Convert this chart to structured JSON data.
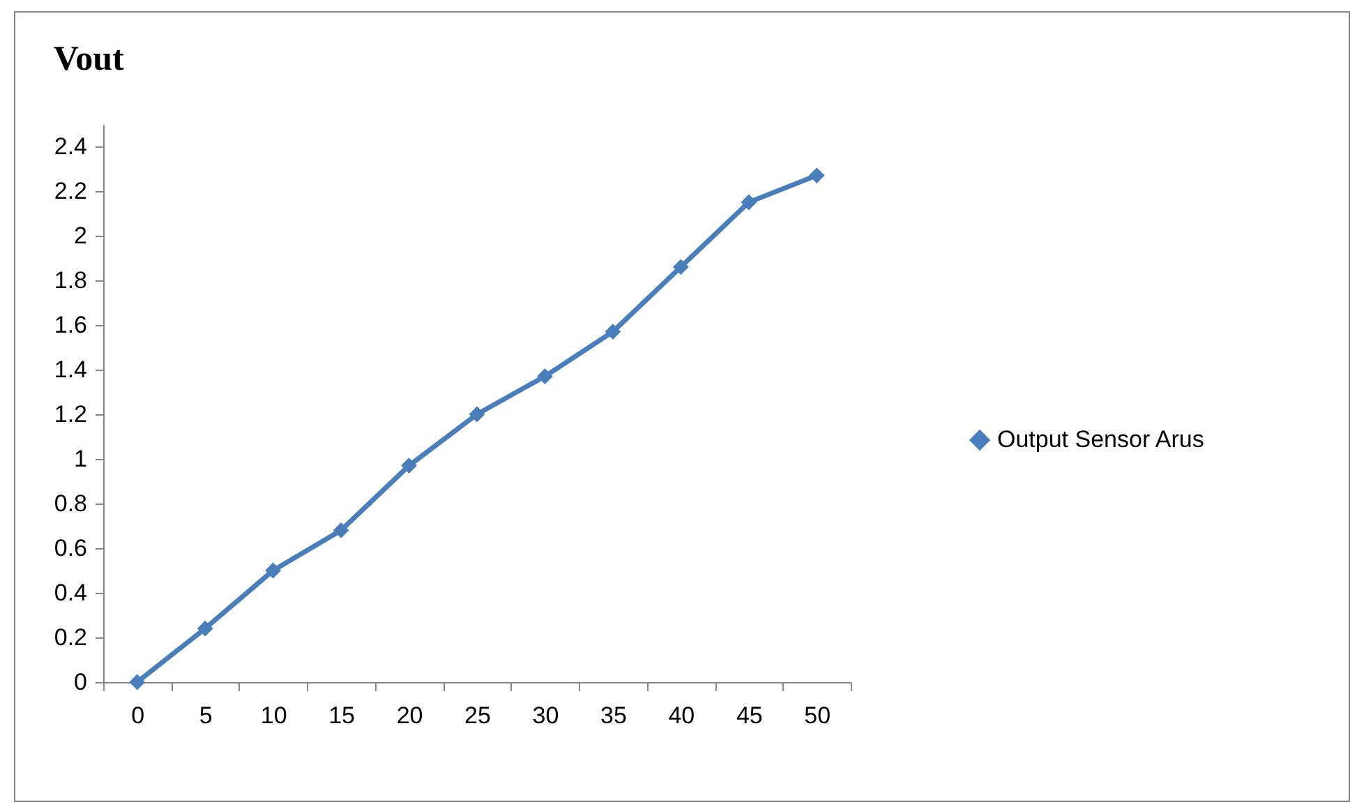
{
  "chart_data": {
    "type": "line",
    "title": "Vout",
    "categories": [
      "0",
      "5",
      "10",
      "15",
      "20",
      "25",
      "30",
      "35",
      "40",
      "45",
      "50"
    ],
    "series": [
      {
        "name": "Output Sensor Arus",
        "color": "#4a7ebb",
        "values": [
          0,
          0.24,
          0.5,
          0.68,
          0.97,
          1.2,
          1.37,
          1.57,
          1.86,
          2.15,
          2.27
        ]
      }
    ],
    "ylim": [
      0,
      2.5
    ],
    "yticks": [
      0,
      0.2,
      0.4,
      0.6,
      0.8,
      1,
      1.2,
      1.4,
      1.6,
      1.8,
      2,
      2.2,
      2.4
    ],
    "grid": false,
    "legend": "right",
    "marker": "diamond",
    "line_style": "solid"
  }
}
